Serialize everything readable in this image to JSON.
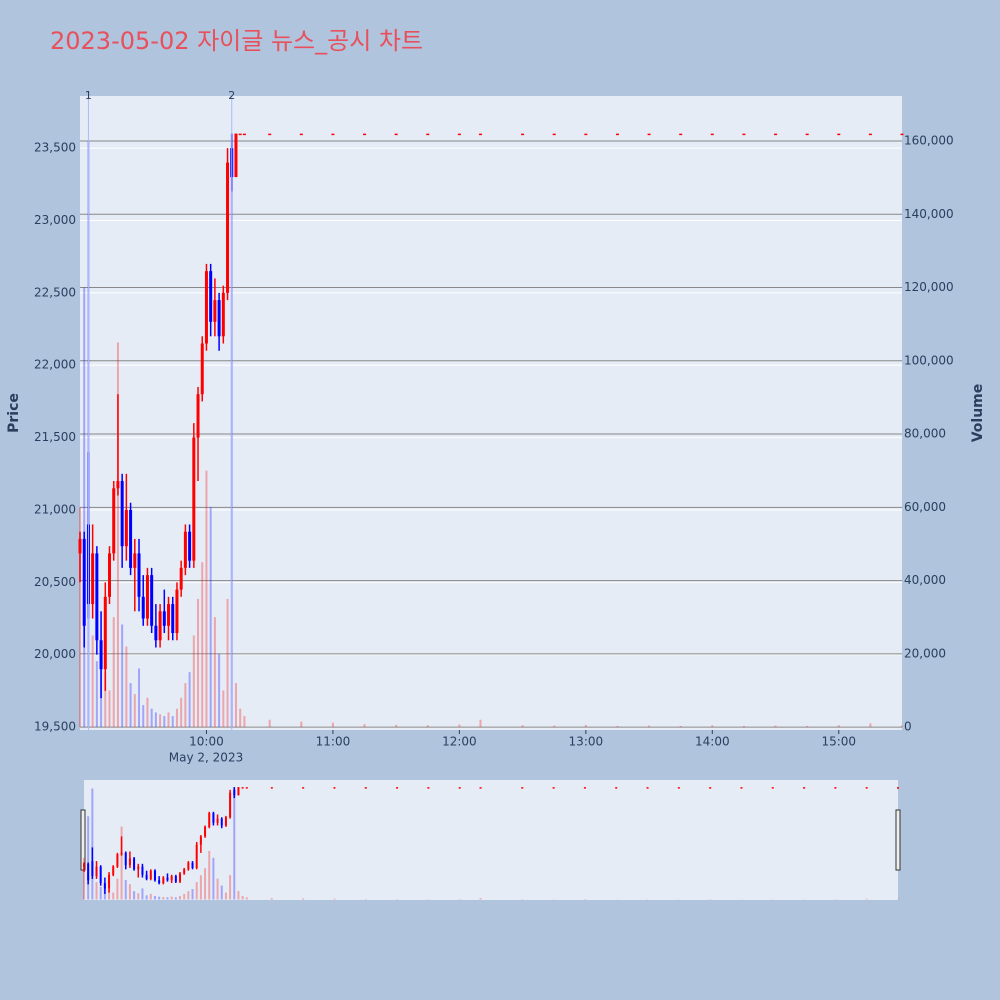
{
  "chart_data": {
    "type": "candlestick",
    "title": "2023-05-02 자이글 뉴스_공시 차트",
    "y_label": "Price",
    "y2_label": "Volume",
    "x_date_label": "May 2, 2023",
    "xlim": [
      "2023-05-02 09:00",
      "2023-05-02 15:30"
    ],
    "xticks": [
      {
        "value": "2023-05-02 10:00",
        "label": "10:00"
      },
      {
        "value": "2023-05-02 11:00",
        "label": "11:00"
      },
      {
        "value": "2023-05-02 12:00",
        "label": "12:00"
      },
      {
        "value": "2023-05-02 13:00",
        "label": "13:00"
      },
      {
        "value": "2023-05-02 14:00",
        "label": "14:00"
      },
      {
        "value": "2023-05-02 15:00",
        "label": "15:00"
      }
    ],
    "ylim": [
      19480,
      23860
    ],
    "yticks": [
      {
        "value": 19500,
        "label": "19,500"
      },
      {
        "value": 20000,
        "label": "20,000"
      },
      {
        "value": 20500,
        "label": "20,500"
      },
      {
        "value": 21000,
        "label": "21,000"
      },
      {
        "value": 21500,
        "label": "21,500"
      },
      {
        "value": 22000,
        "label": "22,000"
      },
      {
        "value": 22500,
        "label": "22,500"
      },
      {
        "value": 23000,
        "label": "23,000"
      },
      {
        "value": 23500,
        "label": "23,500"
      }
    ],
    "y2lim": [
      -800,
      172300
    ],
    "y2ticks": [
      0,
      {
        "value": 20000,
        "label": "20,000"
      },
      {
        "value": 40000,
        "label": "40,000"
      },
      {
        "value": 60000,
        "label": "60,000"
      },
      {
        "value": 80000,
        "label": "80,000"
      },
      {
        "value": 100000,
        "label": "100,000"
      },
      {
        "value": 120000,
        "label": "120,000"
      },
      {
        "value": 140000,
        "label": "140,000"
      },
      {
        "value": 160000,
        "label": "160,000"
      }
    ],
    "increasing_color": "#ff0000",
    "decreasing_color": "#0000ff",
    "annotations": [
      {
        "x": "2023-05-02 09:04",
        "text": "1"
      },
      {
        "x": "2023-05-02 10:12",
        "text": "2"
      }
    ],
    "x": [
      "2023-05-02 09:00",
      "2023-05-02 09:02",
      "2023-05-02 09:04",
      "2023-05-02 09:06",
      "2023-05-02 09:08",
      "2023-05-02 09:10",
      "2023-05-02 09:12",
      "2023-05-02 09:14",
      "2023-05-02 09:16",
      "2023-05-02 09:18",
      "2023-05-02 09:20",
      "2023-05-02 09:22",
      "2023-05-02 09:24",
      "2023-05-02 09:26",
      "2023-05-02 09:28",
      "2023-05-02 09:30",
      "2023-05-02 09:32",
      "2023-05-02 09:34",
      "2023-05-02 09:36",
      "2023-05-02 09:38",
      "2023-05-02 09:40",
      "2023-05-02 09:42",
      "2023-05-02 09:44",
      "2023-05-02 09:46",
      "2023-05-02 09:48",
      "2023-05-02 09:50",
      "2023-05-02 09:52",
      "2023-05-02 09:54",
      "2023-05-02 09:56",
      "2023-05-02 09:58",
      "2023-05-02 10:00",
      "2023-05-02 10:02",
      "2023-05-02 10:04",
      "2023-05-02 10:06",
      "2023-05-02 10:08",
      "2023-05-02 10:10",
      "2023-05-02 10:12",
      "2023-05-02 10:14",
      "2023-05-02 10:16",
      "2023-05-02 10:18",
      "2023-05-02 10:30",
      "2023-05-02 10:45",
      "2023-05-02 11:00",
      "2023-05-02 11:15",
      "2023-05-02 11:30",
      "2023-05-02 11:45",
      "2023-05-02 12:00",
      "2023-05-02 12:10",
      "2023-05-02 12:30",
      "2023-05-02 12:45",
      "2023-05-02 13:00",
      "2023-05-02 13:15",
      "2023-05-02 13:30",
      "2023-05-02 13:45",
      "2023-05-02 14:00",
      "2023-05-02 14:15",
      "2023-05-02 14:30",
      "2023-05-02 14:45",
      "2023-05-02 15:00",
      "2023-05-02 15:15",
      "2023-05-02 15:30"
    ],
    "open": [
      20700,
      20800,
      20900,
      20350,
      20700,
      20100,
      19900,
      20400,
      20700,
      21150,
      21200,
      20750,
      21000,
      20600,
      20700,
      20400,
      20250,
      20550,
      20200,
      20100,
      20300,
      20200,
      20350,
      20150,
      20450,
      20600,
      20850,
      20650,
      21500,
      21800,
      22150,
      22650,
      22300,
      22450,
      22200,
      22500,
      23500,
      23300,
      23600,
      23600,
      23600,
      23600,
      23600,
      23600,
      23600,
      23600,
      23600,
      23600,
      23600,
      23600,
      23600,
      23600,
      23600,
      23600,
      23600,
      23600,
      23600,
      23600,
      23600,
      23600,
      23600
    ],
    "high": [
      20850,
      20850,
      21400,
      20900,
      20750,
      20300,
      20500,
      20750,
      21200,
      21800,
      21250,
      21250,
      21050,
      20800,
      20800,
      20550,
      20600,
      20600,
      20350,
      20350,
      20450,
      20400,
      20400,
      20500,
      20650,
      20900,
      20900,
      21600,
      21850,
      22200,
      22700,
      22700,
      22600,
      22500,
      22550,
      23500,
      23600,
      23600,
      23600,
      23600,
      23600,
      23600,
      23600,
      23600,
      23600,
      23600,
      23600,
      23600,
      23600,
      23600,
      23600,
      23600,
      23600,
      23600,
      23600,
      23600,
      23600,
      23600,
      23600,
      23600,
      23600
    ],
    "low": [
      20500,
      20050,
      20250,
      20250,
      20000,
      19700,
      19750,
      20350,
      20650,
      21100,
      20600,
      20650,
      20550,
      20300,
      20300,
      20200,
      20200,
      20150,
      20050,
      20050,
      20150,
      20100,
      20100,
      20100,
      20400,
      20550,
      20600,
      20600,
      21200,
      21750,
      22100,
      22200,
      22200,
      22100,
      22150,
      22450,
      23200,
      23300,
      23600,
      23600,
      23600,
      23600,
      23600,
      23600,
      23600,
      23600,
      23600,
      23600,
      23600,
      23600,
      23600,
      23600,
      23600,
      23600,
      23600,
      23600,
      23600,
      23600,
      23600,
      23600,
      23600
    ],
    "close": [
      20800,
      20200,
      20350,
      20700,
      20100,
      19900,
      20400,
      20700,
      21150,
      21200,
      20750,
      21000,
      20600,
      20700,
      20400,
      20250,
      20550,
      20200,
      20100,
      20300,
      20200,
      20350,
      20150,
      20450,
      20600,
      20850,
      20650,
      21500,
      21800,
      22150,
      22650,
      22300,
      22450,
      22200,
      22500,
      23400,
      23300,
      23600,
      23600,
      23600,
      23600,
      23600,
      23600,
      23600,
      23600,
      23600,
      23600,
      23600,
      23600,
      23600,
      23600,
      23600,
      23600,
      23600,
      23600,
      23600,
      23600,
      23600,
      23600,
      23600,
      23600
    ],
    "volume": [
      60000,
      120000,
      160000,
      25000,
      18000,
      20000,
      15000,
      10000,
      30000,
      105000,
      28000,
      22000,
      12000,
      9000,
      16000,
      6000,
      8000,
      5000,
      4000,
      3500,
      3000,
      4000,
      3000,
      5000,
      8000,
      12000,
      15000,
      25000,
      35000,
      45000,
      70000,
      60000,
      30000,
      20000,
      10000,
      35000,
      162000,
      12000,
      5000,
      3000,
      2000,
      1500,
      1200,
      800,
      600,
      500,
      700,
      2000,
      500,
      400,
      600,
      300,
      400,
      300,
      500,
      300,
      400,
      300,
      500,
      1000,
      400
    ]
  }
}
